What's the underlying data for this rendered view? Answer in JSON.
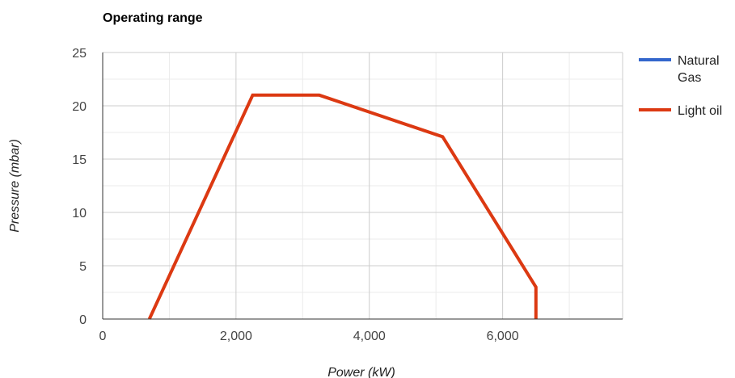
{
  "chart_data": {
    "type": "line",
    "title": "Operating range",
    "xlabel": "Power (kW)",
    "ylabel": "Pressure (mbar)",
    "xlim": [
      0,
      7800
    ],
    "ylim": [
      0,
      25
    ],
    "x_ticks": [
      0,
      2000,
      4000,
      6000
    ],
    "x_tick_labels": [
      "0",
      "2,000",
      "4,000",
      "6,000"
    ],
    "y_ticks": [
      0,
      5,
      10,
      15,
      20,
      25
    ],
    "y_tick_labels": [
      "0",
      "5",
      "10",
      "15",
      "20",
      "25"
    ],
    "grid": true,
    "legend_position": "right",
    "series": [
      {
        "name": "Natural Gas",
        "color": "#3366cc",
        "points": []
      },
      {
        "name": "Light oil",
        "color": "#dc3912",
        "points": [
          [
            700,
            0
          ],
          [
            2250,
            21
          ],
          [
            3250,
            21
          ],
          [
            5100,
            17.1
          ],
          [
            6500,
            3
          ],
          [
            6500,
            0
          ]
        ]
      }
    ]
  }
}
